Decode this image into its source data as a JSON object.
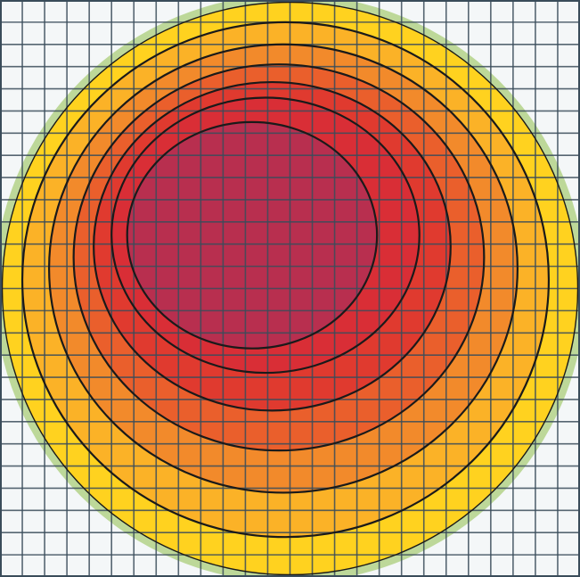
{
  "chart_data": {
    "type": "heatmap",
    "subtype": "filled-contour",
    "title": "",
    "xlabel": "",
    "ylabel": "",
    "xlim": [
      0,
      26
    ],
    "ylim": [
      0,
      26
    ],
    "grid": true,
    "legend": "none",
    "contour_levels": [
      {
        "level": 1,
        "fill": "#ffd21f",
        "cx": 13.0,
        "cy": 13.0,
        "rx": 12.9,
        "ry": 12.9
      },
      {
        "level": 2,
        "fill": "#fbb227",
        "cx": 12.8,
        "cy": 12.6,
        "rx": 11.8,
        "ry": 11.6
      },
      {
        "level": 3,
        "fill": "#f28a2b",
        "cx": 12.7,
        "cy": 12.1,
        "rx": 10.5,
        "ry": 10.1
      },
      {
        "level": 4,
        "fill": "#ea5f2c",
        "cx": 12.5,
        "cy": 11.6,
        "rx": 9.2,
        "ry": 8.7
      },
      {
        "level": 5,
        "fill": "#e03a2f",
        "cx": 12.2,
        "cy": 11.1,
        "rx": 8.0,
        "ry": 7.4
      },
      {
        "level": 6,
        "fill": "#d92e36",
        "cx": 11.9,
        "cy": 10.6,
        "rx": 6.9,
        "ry": 6.2
      },
      {
        "level": 7,
        "fill": "#b82f4f",
        "cx": 11.3,
        "cy": 10.6,
        "rx": 5.6,
        "ry": 5.1
      }
    ],
    "colors": {
      "background": "#f4f7f8",
      "grid_line": "#3a4c5a",
      "grid_line_outside": "#6e8794",
      "contour_line": "#1a1a1a",
      "fringe_green": "#8fbf4a"
    }
  }
}
